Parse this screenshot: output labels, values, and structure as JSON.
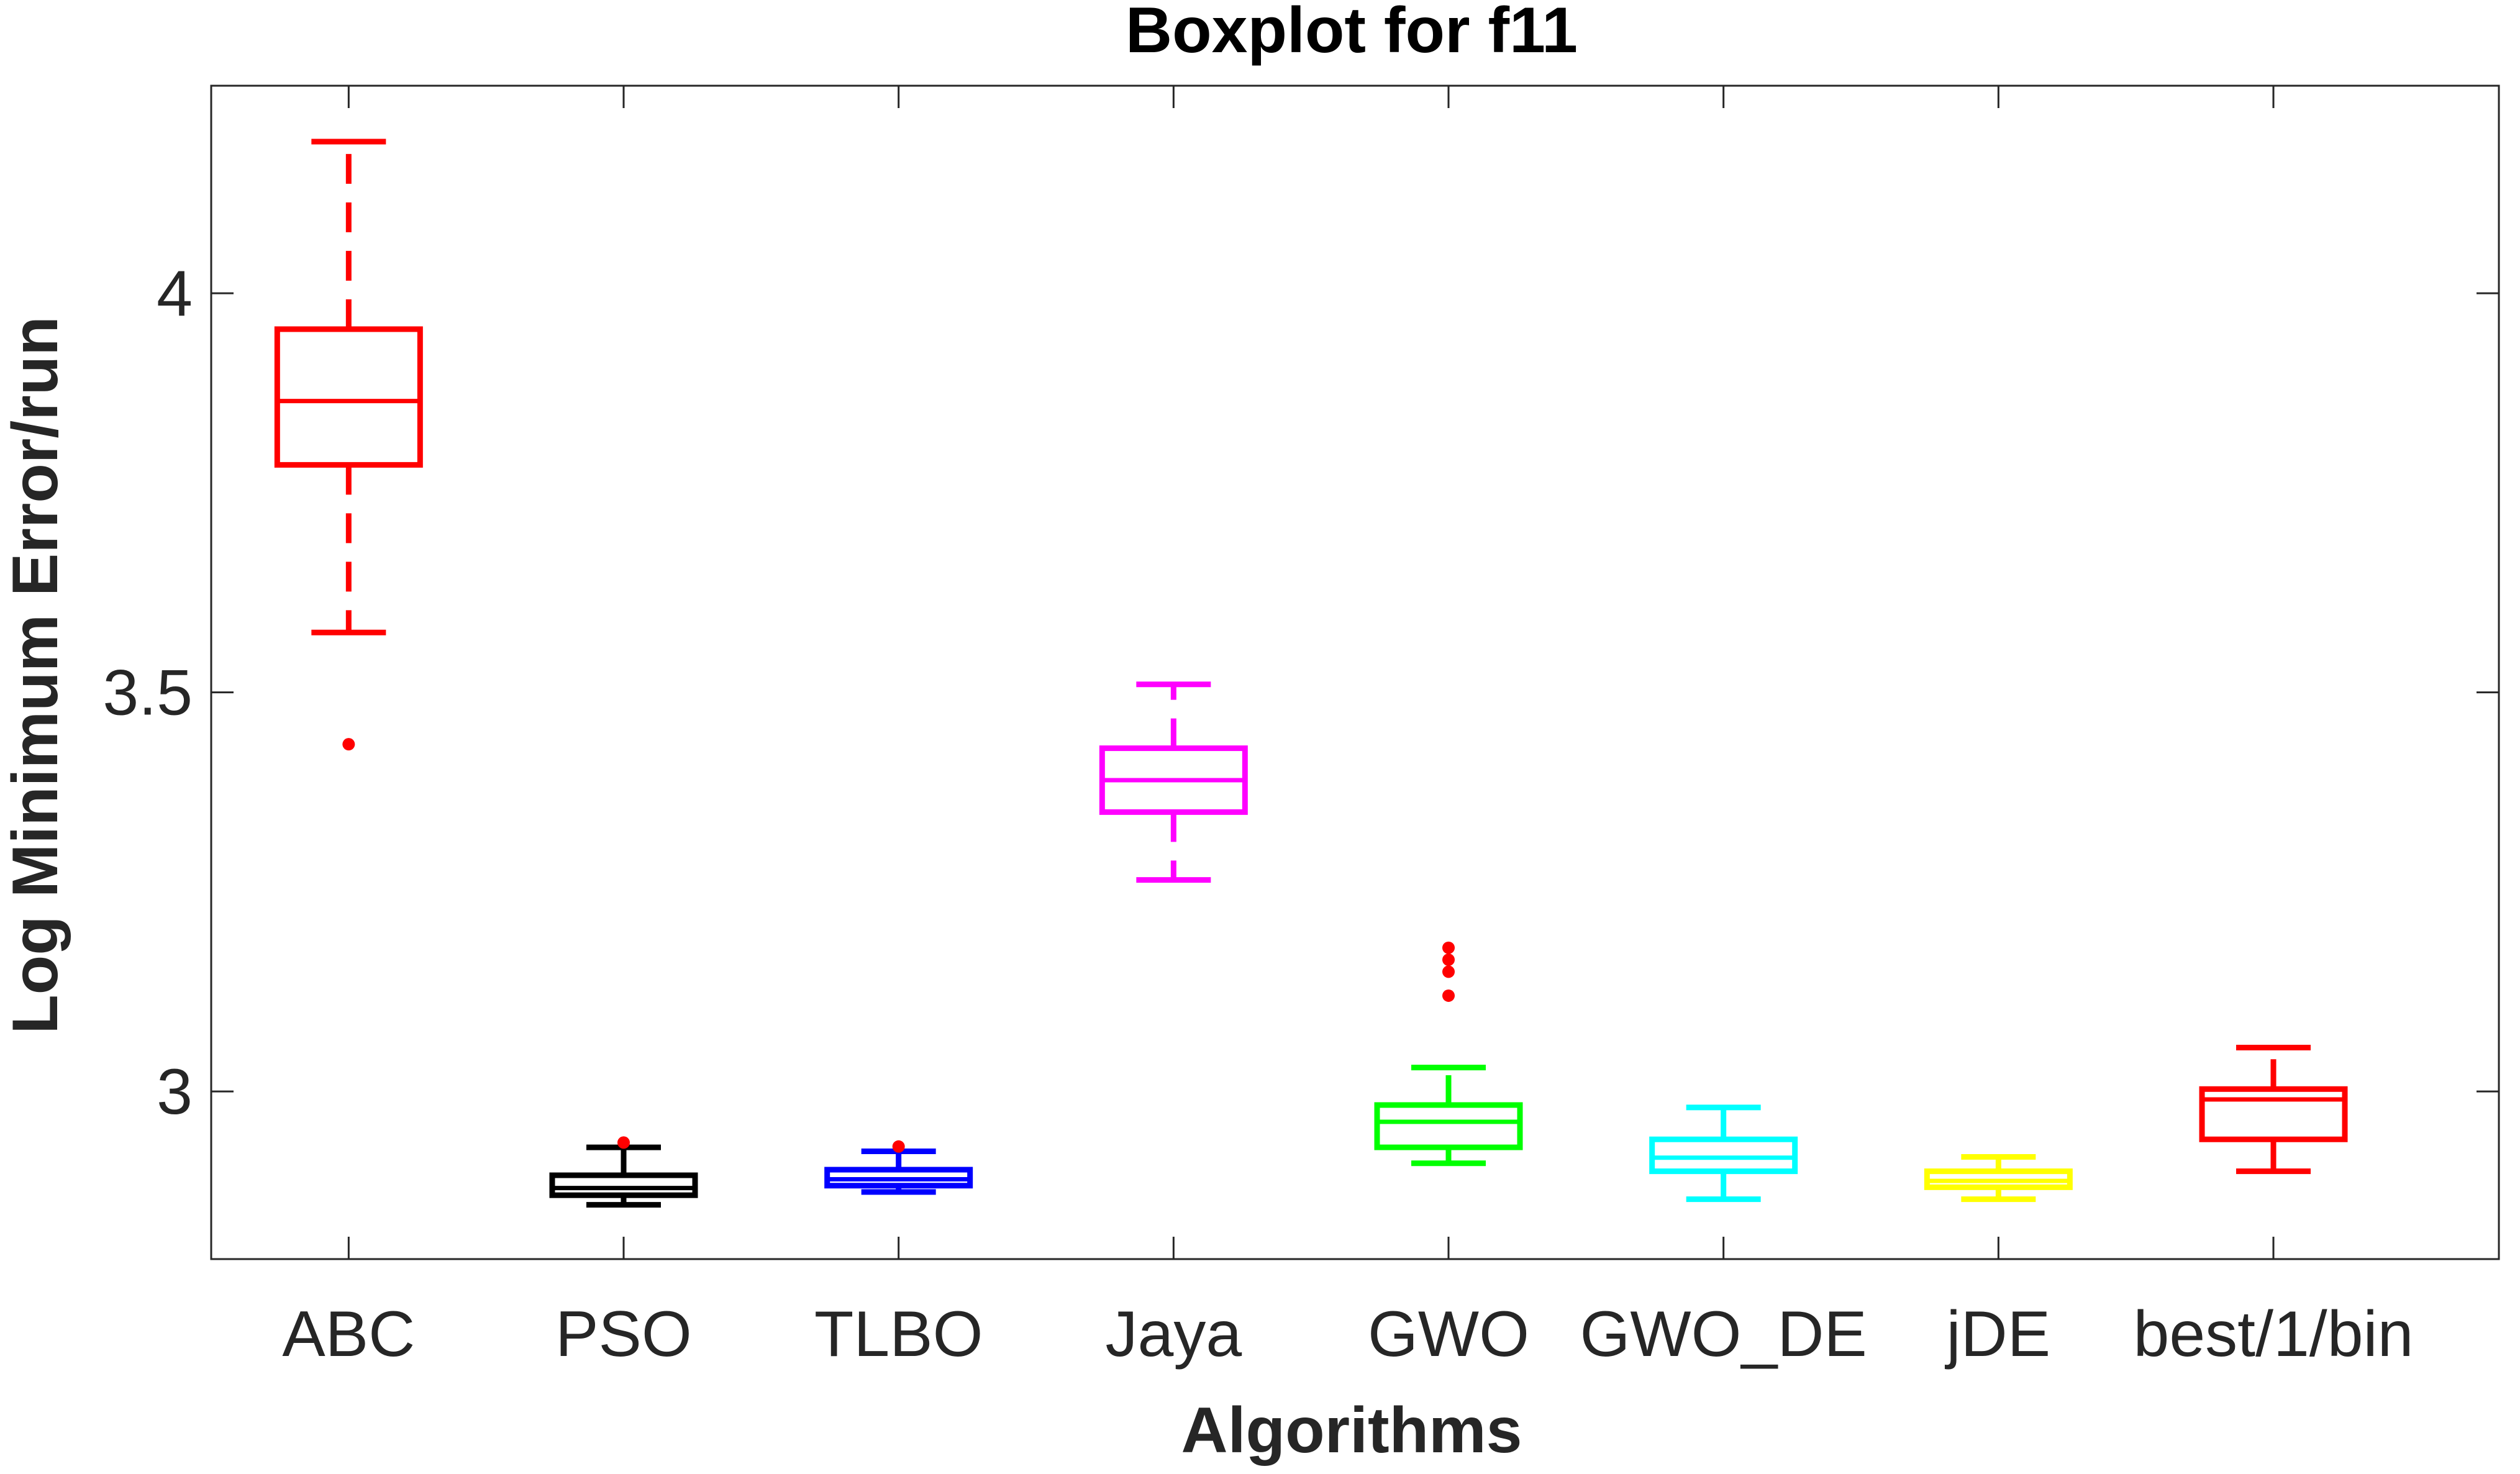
{
  "chart_data": {
    "type": "boxplot",
    "title": "Boxplot for f11",
    "xlabel": "Algorithms",
    "ylabel": "Log Minimum Error/run",
    "ylim": [
      2.79,
      4.26
    ],
    "yticks": [
      3,
      3.5,
      4
    ],
    "ytick_labels": [
      "3",
      "3.5",
      "4"
    ],
    "grid": false,
    "categories": [
      "ABC",
      "PSO",
      "TLBO",
      "Jaya",
      "GWO",
      "GWO_DE",
      "jDE",
      "best/1/bin"
    ],
    "series": [
      {
        "category": "ABC",
        "color": "#ff0000",
        "whisker_low": 3.575,
        "q1": 3.785,
        "median": 3.865,
        "q3": 3.955,
        "whisker_high": 4.19,
        "outliers": [
          3.435
        ]
      },
      {
        "category": "PSO",
        "color": "#000000",
        "whisker_low": 2.858,
        "q1": 2.87,
        "median": 2.879,
        "q3": 2.895,
        "whisker_high": 2.93,
        "outliers": [
          2.936
        ]
      },
      {
        "category": "TLBO",
        "color": "#0000ff",
        "whisker_low": 2.874,
        "q1": 2.882,
        "median": 2.89,
        "q3": 2.902,
        "whisker_high": 2.925,
        "outliers": [
          2.931
        ]
      },
      {
        "category": "Jaya",
        "color": "#ff00ff",
        "whisker_low": 3.265,
        "q1": 3.35,
        "median": 3.39,
        "q3": 3.43,
        "whisker_high": 3.51,
        "outliers": []
      },
      {
        "category": "GWO",
        "color": "#00ff00",
        "whisker_low": 2.91,
        "q1": 2.93,
        "median": 2.962,
        "q3": 2.983,
        "whisker_high": 3.03,
        "outliers": [
          3.12,
          3.15,
          3.165,
          3.18
        ]
      },
      {
        "category": "GWO_DE",
        "color": "#00ffff",
        "whisker_low": 2.865,
        "q1": 2.9,
        "median": 2.917,
        "q3": 2.94,
        "whisker_high": 2.98,
        "outliers": []
      },
      {
        "category": "jDE",
        "color": "#ffff00",
        "whisker_low": 2.865,
        "q1": 2.88,
        "median": 2.888,
        "q3": 2.9,
        "whisker_high": 2.918,
        "outliers": []
      },
      {
        "category": "best/1/bin",
        "color": "#ff0000",
        "whisker_low": 2.9,
        "q1": 2.94,
        "median": 2.99,
        "q3": 3.003,
        "whisker_high": 3.055,
        "outliers": []
      }
    ],
    "outlier_color": "#ff0000"
  }
}
